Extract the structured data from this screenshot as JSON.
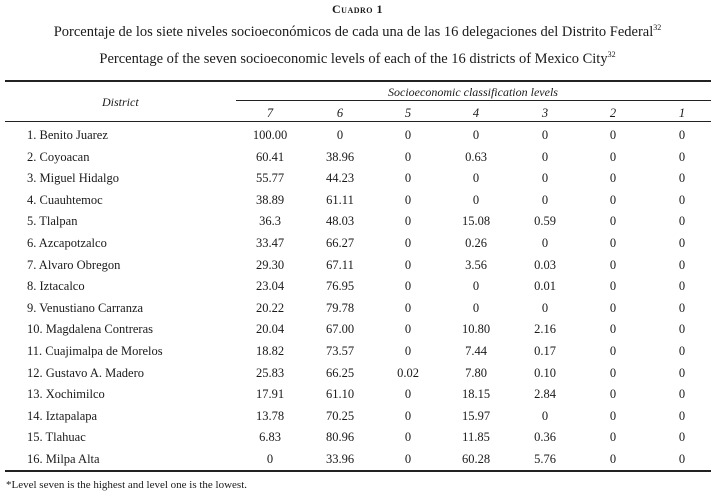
{
  "caption": "Cuadro 1",
  "title_es": "Porcentaje de los siete niveles socioeconómicos de cada una de las 16 delegaciones del Distrito Federal",
  "title_en": "Percentage of the seven socioeconomic levels of each of the 16 districts of Mexico City",
  "footnote_ref": "32",
  "table": {
    "district_header": "District",
    "levels_header": "Socioeconomic classification levels",
    "levels": [
      "7",
      "6",
      "5",
      "4",
      "3",
      "2",
      "1"
    ],
    "rows": [
      {
        "district": "1. Benito Juarez",
        "values": [
          "100.00",
          "0",
          "0",
          "0",
          "0",
          "0",
          "0"
        ]
      },
      {
        "district": "2. Coyoacan",
        "values": [
          "60.41",
          "38.96",
          "0",
          "0.63",
          "0",
          "0",
          "0"
        ]
      },
      {
        "district": "3. Miguel Hidalgo",
        "values": [
          "55.77",
          "44.23",
          "0",
          "0",
          "0",
          "0",
          "0"
        ]
      },
      {
        "district": "4. Cuauhtemoc",
        "values": [
          "38.89",
          "61.11",
          "0",
          "0",
          "0",
          "0",
          "0"
        ]
      },
      {
        "district": "5. Tlalpan",
        "values": [
          "36.3",
          "48.03",
          "0",
          "15.08",
          "0.59",
          "0",
          "0"
        ]
      },
      {
        "district": "6. Azcapotzalco",
        "values": [
          "33.47",
          "66.27",
          "0",
          "0.26",
          "0",
          "0",
          "0"
        ]
      },
      {
        "district": "7. Alvaro Obregon",
        "values": [
          "29.30",
          "67.11",
          "0",
          "3.56",
          "0.03",
          "0",
          "0"
        ]
      },
      {
        "district": "8. Iztacalco",
        "values": [
          "23.04",
          "76.95",
          "0",
          "0",
          "0.01",
          "0",
          "0"
        ]
      },
      {
        "district": "9. Venustiano Carranza",
        "values": [
          "20.22",
          "79.78",
          "0",
          "0",
          "0",
          "0",
          "0"
        ]
      },
      {
        "district": "10. Magdalena Contreras",
        "values": [
          "20.04",
          "67.00",
          "0",
          "10.80",
          "2.16",
          "0",
          "0"
        ]
      },
      {
        "district": "11. Cuajimalpa de Morelos",
        "values": [
          "18.82",
          "73.57",
          "0",
          "7.44",
          "0.17",
          "0",
          "0"
        ]
      },
      {
        "district": "12. Gustavo A. Madero",
        "values": [
          "25.83",
          "66.25",
          "0.02",
          "7.80",
          "0.10",
          "0",
          "0"
        ]
      },
      {
        "district": "13. Xochimilco",
        "values": [
          "17.91",
          "61.10",
          "0",
          "18.15",
          "2.84",
          "0",
          "0"
        ]
      },
      {
        "district": "14. Iztapalapa",
        "values": [
          "13.78",
          "70.25",
          "0",
          "15.97",
          "0",
          "0",
          "0"
        ]
      },
      {
        "district": "15. Tlahuac",
        "values": [
          "6.83",
          "80.96",
          "0",
          "11.85",
          "0.36",
          "0",
          "0"
        ]
      },
      {
        "district": "16. Milpa Alta",
        "values": [
          "0",
          "33.96",
          "0",
          "60.28",
          "5.76",
          "0",
          "0"
        ]
      }
    ]
  },
  "footnote": "*Level seven is the highest and level one is the lowest."
}
